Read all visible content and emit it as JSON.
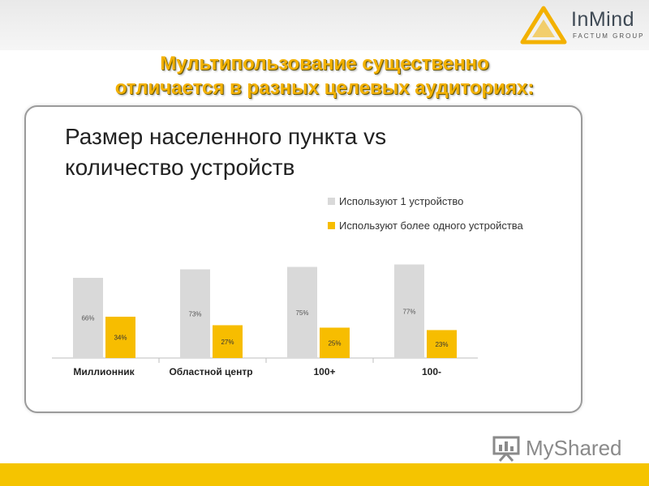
{
  "slide": {
    "title_line1": "Мультипользование существенно",
    "title_line2": "отличается в разных целевых аудиториях:"
  },
  "logo": {
    "name": "InMind",
    "subtitle": "FACTUM GROUP",
    "color": "#f3b100"
  },
  "chart_heading": {
    "line1": "Размер населенного пункта vs",
    "line2": "количество устройств"
  },
  "chart_data": {
    "type": "bar",
    "categories": [
      "Миллионник",
      "Областной центр",
      "100+",
      "100-"
    ],
    "series": [
      {
        "name": "Используют 1 устройство",
        "values": [
          66,
          73,
          75,
          77
        ],
        "labels": [
          "66%",
          "73%",
          "75%",
          "77%"
        ],
        "color": "#d9d9d9"
      },
      {
        "name": "Используют более одного устройства",
        "values": [
          34,
          27,
          25,
          23
        ],
        "labels": [
          "34%",
          "27%",
          "25%",
          "23%"
        ],
        "color": "#f7bd00"
      }
    ],
    "title": "",
    "xlabel": "",
    "ylabel": "",
    "ylim": [
      0,
      100
    ],
    "grid": false,
    "legend_position": "top-right"
  },
  "watermark": {
    "text": "MyShared",
    "icon": "presentation-board-icon"
  },
  "colors": {
    "accent": "#f3b100",
    "bottom_bar": "#f5c400",
    "panel_border": "#9b9b9b"
  }
}
